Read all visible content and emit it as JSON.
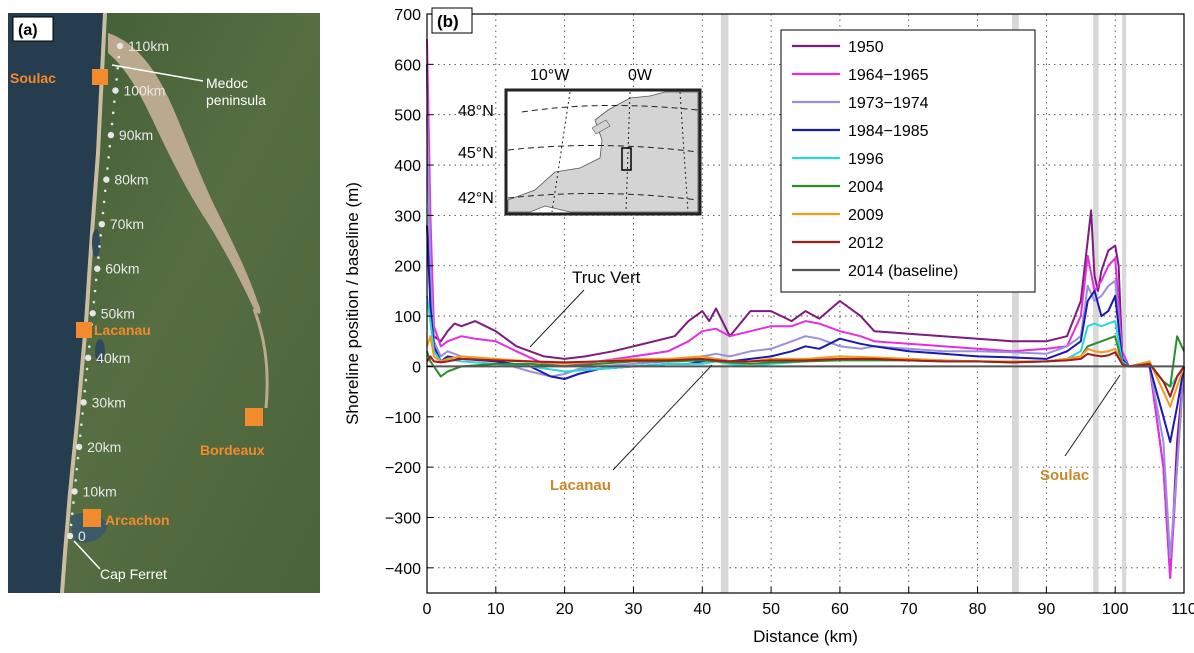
{
  "panel_a": {
    "label": "(a)",
    "km_labels": [
      "110km",
      "100km",
      "90km",
      "80km",
      "70km",
      "60km",
      "50km",
      "40km",
      "30km",
      "20km",
      "10km",
      "0"
    ],
    "places": {
      "soulac": "Soulac",
      "lacanau": "Lacanau",
      "bordeaux": "Bordeaux",
      "arcachon": "Arcachon",
      "cap_ferret": "Cap Ferret",
      "medoc": "Medoc",
      "peninsula": "peninsula"
    },
    "colors": {
      "place": "#f28a2e",
      "land": "#4f6a3c",
      "ocean": "#253d4e",
      "estuary": "#bba98e"
    }
  },
  "panel_b": {
    "label": "(b)",
    "inset": {
      "lon_labels": [
        "10°W",
        "0W"
      ],
      "lat_labels": [
        "48°N",
        "45°N",
        "42°N"
      ]
    },
    "annotations": {
      "truc_vert": "Truc Vert",
      "lacanau": "Lacanau",
      "soulac": "Soulac",
      "label_color": "#c8882a"
    }
  },
  "chart_data": {
    "type": "line",
    "xlabel": "Distance (km)",
    "ylabel": "Shoreline position / baseline (m)",
    "xlim": [
      0,
      110
    ],
    "ylim": [
      -450,
      700
    ],
    "xticks": [
      0,
      10,
      20,
      30,
      40,
      50,
      60,
      70,
      80,
      90,
      100,
      110
    ],
    "yticks": [
      700,
      600,
      500,
      400,
      300,
      200,
      100,
      0,
      -100,
      -200,
      -300,
      -400
    ],
    "grid": "dotted",
    "legend_position": "top-right",
    "gaps_km": [
      [
        42.7,
        43.8
      ],
      [
        85,
        86
      ],
      [
        96.8,
        97.6
      ],
      [
        101,
        101.6
      ]
    ],
    "series": [
      {
        "name": "1950",
        "color": "#7d1b7e",
        "x": [
          0,
          0.5,
          1,
          2,
          3,
          4,
          5,
          7,
          10,
          13,
          17,
          20,
          23,
          25,
          27,
          30,
          33,
          36,
          38,
          39,
          40,
          41,
          42,
          44,
          47,
          50,
          53,
          55,
          57,
          60,
          61,
          63,
          65,
          70,
          75,
          80,
          85,
          90,
          93,
          95,
          96,
          96.5,
          97,
          97.5,
          98,
          99,
          100,
          100.5,
          101,
          102,
          105,
          107,
          108,
          109,
          110
        ],
        "y": [
          600,
          120,
          60,
          50,
          70,
          85,
          80,
          90,
          70,
          40,
          20,
          15,
          20,
          25,
          30,
          40,
          50,
          60,
          90,
          100,
          110,
          90,
          115,
          60,
          110,
          110,
          90,
          110,
          95,
          130,
          120,
          100,
          70,
          65,
          60,
          55,
          50,
          50,
          60,
          130,
          250,
          310,
          180,
          150,
          190,
          230,
          240,
          200,
          30,
          0,
          0,
          -200,
          -420,
          -150,
          0
        ]
      },
      {
        "name": "1964−1965",
        "color": "#e22fe0",
        "x": [
          0,
          0.5,
          1,
          2,
          3,
          5,
          7,
          10,
          13,
          17,
          20,
          25,
          30,
          35,
          38,
          40,
          42,
          44,
          47,
          50,
          53,
          55,
          57,
          60,
          63,
          65,
          70,
          75,
          80,
          85,
          90,
          93,
          95,
          96,
          97,
          98,
          99,
          100,
          101,
          102,
          105,
          107,
          108,
          109,
          110
        ],
        "y": [
          650,
          300,
          80,
          40,
          50,
          60,
          55,
          50,
          30,
          5,
          0,
          10,
          20,
          30,
          50,
          70,
          75,
          60,
          70,
          80,
          80,
          90,
          85,
          70,
          60,
          50,
          45,
          40,
          35,
          30,
          35,
          40,
          100,
          220,
          150,
          170,
          200,
          215,
          30,
          0,
          0,
          -200,
          -420,
          -200,
          0
        ]
      },
      {
        "name": "1973−1974",
        "color": "#9b8fe0",
        "x": [
          0,
          0.5,
          1,
          2,
          3,
          5,
          10,
          15,
          18,
          20,
          22,
          25,
          30,
          35,
          38,
          40,
          42,
          44,
          47,
          50,
          53,
          55,
          57,
          60,
          63,
          65,
          70,
          75,
          80,
          85,
          90,
          93,
          95,
          96,
          97,
          98,
          99,
          100,
          101,
          102,
          105,
          107,
          108,
          109,
          110
        ],
        "y": [
          500,
          200,
          50,
          20,
          30,
          20,
          10,
          -10,
          -20,
          -15,
          -5,
          0,
          5,
          10,
          15,
          20,
          25,
          20,
          30,
          35,
          50,
          60,
          55,
          40,
          35,
          40,
          35,
          30,
          30,
          28,
          25,
          40,
          60,
          160,
          130,
          140,
          160,
          170,
          20,
          0,
          0,
          -150,
          -380,
          -200,
          0
        ]
      },
      {
        "name": "1984−1985",
        "color": "#1a1ab0",
        "x": [
          0,
          0.5,
          1,
          2,
          3,
          5,
          10,
          15,
          18,
          20,
          22,
          25,
          30,
          35,
          38,
          40,
          42,
          44,
          47,
          50,
          53,
          55,
          57,
          60,
          63,
          65,
          70,
          75,
          80,
          85,
          90,
          93,
          95,
          96,
          97,
          98,
          99,
          100,
          101,
          102,
          105,
          107,
          108,
          109,
          110
        ],
        "y": [
          280,
          120,
          40,
          10,
          20,
          15,
          10,
          0,
          -20,
          -25,
          -15,
          -5,
          0,
          5,
          5,
          10,
          15,
          10,
          15,
          20,
          30,
          40,
          35,
          55,
          45,
          40,
          30,
          25,
          20,
          18,
          15,
          30,
          50,
          130,
          150,
          100,
          110,
          140,
          15,
          0,
          0,
          -100,
          -150,
          -80,
          0
        ]
      },
      {
        "name": "1996",
        "color": "#28d7dc",
        "x": [
          0,
          0.5,
          1,
          2,
          3,
          5,
          10,
          15,
          20,
          25,
          30,
          35,
          40,
          42,
          44,
          47,
          50,
          55,
          60,
          65,
          70,
          75,
          80,
          85,
          90,
          93,
          95,
          96,
          97,
          98,
          99,
          100,
          101,
          102,
          105,
          107,
          108,
          110
        ],
        "y": [
          140,
          90,
          30,
          10,
          15,
          10,
          5,
          0,
          -10,
          -5,
          0,
          5,
          5,
          10,
          5,
          0,
          5,
          10,
          15,
          15,
          15,
          12,
          10,
          8,
          10,
          15,
          30,
          80,
          85,
          80,
          85,
          90,
          10,
          0,
          5,
          -30,
          -40,
          0
        ]
      },
      {
        "name": "2004",
        "color": "#2c8c2c",
        "x": [
          0,
          0.5,
          1,
          2,
          3,
          5,
          10,
          15,
          20,
          25,
          30,
          35,
          40,
          42,
          44,
          47,
          50,
          55,
          60,
          65,
          70,
          75,
          80,
          85,
          90,
          93,
          95,
          96,
          97,
          98,
          99,
          100,
          101,
          102,
          105,
          107,
          108,
          109,
          110
        ],
        "y": [
          30,
          10,
          0,
          -20,
          -10,
          0,
          5,
          5,
          0,
          5,
          10,
          10,
          12,
          10,
          8,
          5,
          8,
          10,
          12,
          12,
          12,
          10,
          10,
          8,
          10,
          15,
          20,
          40,
          45,
          50,
          55,
          60,
          5,
          0,
          5,
          -30,
          -40,
          60,
          30
        ]
      },
      {
        "name": "2009",
        "color": "#f59a21",
        "x": [
          0,
          0.5,
          1,
          2,
          3,
          5,
          10,
          15,
          20,
          25,
          30,
          35,
          40,
          42,
          44,
          47,
          50,
          55,
          60,
          65,
          70,
          75,
          80,
          85,
          90,
          93,
          95,
          96,
          97,
          98,
          99,
          100,
          101,
          102,
          105,
          107,
          108,
          109,
          110
        ],
        "y": [
          40,
          60,
          20,
          10,
          15,
          20,
          15,
          10,
          5,
          10,
          15,
          15,
          20,
          15,
          10,
          10,
          15,
          15,
          20,
          18,
          15,
          12,
          10,
          10,
          10,
          15,
          20,
          35,
          30,
          28,
          30,
          35,
          5,
          0,
          10,
          -50,
          -80,
          -40,
          0
        ]
      },
      {
        "name": "2012",
        "color": "#a11c1c",
        "x": [
          0,
          0.5,
          1,
          2,
          3,
          5,
          10,
          15,
          20,
          25,
          30,
          35,
          40,
          42,
          44,
          47,
          50,
          55,
          60,
          65,
          70,
          75,
          80,
          85,
          90,
          93,
          95,
          96,
          97,
          98,
          99,
          100,
          101,
          102,
          105,
          107,
          108,
          109,
          110
        ],
        "y": [
          10,
          20,
          10,
          8,
          10,
          15,
          12,
          10,
          8,
          10,
          12,
          12,
          15,
          12,
          10,
          10,
          12,
          12,
          15,
          15,
          12,
          10,
          10,
          8,
          10,
          12,
          15,
          25,
          22,
          20,
          22,
          28,
          5,
          0,
          5,
          -30,
          -60,
          -20,
          0
        ]
      },
      {
        "name": "2014 (baseline)",
        "color": "#555555",
        "x": [
          0,
          110
        ],
        "y": [
          0,
          0
        ]
      }
    ]
  }
}
